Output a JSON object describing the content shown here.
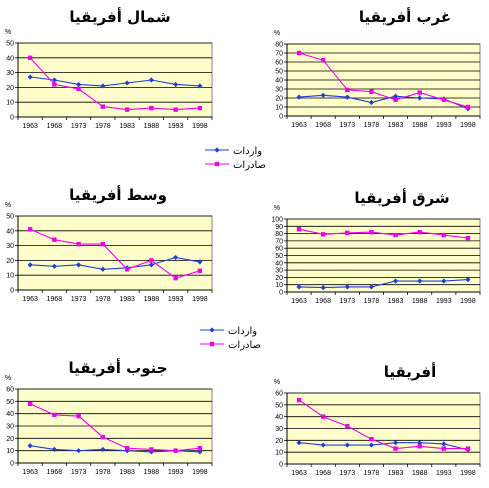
{
  "unit_symbol": "%",
  "colors": {
    "imports": "#1f3fd8",
    "exports": "#ee00ee",
    "plot_bg": "#ffffcc",
    "grid": "#000000"
  },
  "legends": [
    {
      "imports": "واردات",
      "exports": "صادرات"
    },
    {
      "imports": "واردات",
      "exports": "صادرات"
    }
  ],
  "chart_data": [
    {
      "type": "line",
      "title": "شمال أفريقيا",
      "categories": [
        "1963",
        "1968",
        "1973",
        "1978",
        "1983",
        "1988",
        "1993",
        "1998"
      ],
      "ylim": [
        0,
        50
      ],
      "yticks": [
        0,
        10,
        20,
        30,
        40,
        50
      ],
      "grid": true,
      "y_unit": "%",
      "series": [
        {
          "name": "واردات",
          "values": [
            27,
            25,
            22,
            21,
            23,
            25,
            22,
            21
          ]
        },
        {
          "name": "صادرات",
          "values": [
            40,
            22,
            19,
            7,
            5,
            6,
            5,
            6
          ]
        }
      ]
    },
    {
      "type": "line",
      "title": "غرب أفريقيا",
      "categories": [
        "1963",
        "1968",
        "1973",
        "1978",
        "1983",
        "1988",
        "1993",
        "1998"
      ],
      "ylim": [
        0,
        80
      ],
      "yticks": [
        0,
        10,
        20,
        30,
        40,
        50,
        60,
        70,
        80
      ],
      "grid": true,
      "y_unit": "%",
      "series": [
        {
          "name": "واردات",
          "values": [
            21,
            23,
            21,
            15,
            22,
            20,
            19,
            8
          ]
        },
        {
          "name": "صادرات",
          "values": [
            70,
            62,
            29,
            27,
            18,
            26,
            18,
            10
          ]
        }
      ]
    },
    {
      "type": "line",
      "title": "وسط أفريقيا",
      "categories": [
        "1963",
        "1968",
        "1973",
        "1978",
        "1983",
        "1988",
        "1993",
        "1998"
      ],
      "ylim": [
        0,
        50
      ],
      "yticks": [
        0,
        10,
        20,
        30,
        40,
        50
      ],
      "grid": true,
      "y_unit": "%",
      "series": [
        {
          "name": "واردات",
          "values": [
            17,
            16,
            17,
            14,
            15,
            17,
            22,
            19
          ]
        },
        {
          "name": "صادرات",
          "values": [
            41,
            34,
            31,
            31,
            14,
            20,
            8,
            13
          ]
        }
      ]
    },
    {
      "type": "line",
      "title": "شرق أفريقيا",
      "categories": [
        "1963",
        "1968",
        "1973",
        "1978",
        "1983",
        "1988",
        "1993",
        "1998"
      ],
      "ylim": [
        0,
        100
      ],
      "yticks": [
        0,
        10,
        20,
        30,
        40,
        50,
        60,
        70,
        80,
        90,
        100
      ],
      "grid": true,
      "y_unit": "%",
      "series": [
        {
          "name": "واردات",
          "values": [
            7,
            6,
            7,
            7,
            15,
            15,
            15,
            17
          ]
        },
        {
          "name": "صادرات",
          "values": [
            86,
            79,
            81,
            82,
            78,
            82,
            78,
            74
          ]
        }
      ]
    },
    {
      "type": "line",
      "title": "جنوب أفريقيا",
      "categories": [
        "1963",
        "1968",
        "1973",
        "1978",
        "1983",
        "1988",
        "1993",
        "1998"
      ],
      "ylim": [
        0,
        60
      ],
      "yticks": [
        0,
        10,
        20,
        30,
        40,
        50,
        60
      ],
      "grid": true,
      "y_unit": "%",
      "series": [
        {
          "name": "واردات",
          "values": [
            14,
            11,
            10,
            11,
            10,
            9,
            10,
            9
          ]
        },
        {
          "name": "صادرات",
          "values": [
            48,
            39,
            38,
            21,
            12,
            11,
            10,
            12
          ]
        }
      ]
    },
    {
      "type": "line",
      "title": "أفريقيا",
      "categories": [
        "1963",
        "1968",
        "1973",
        "1978",
        "1983",
        "1988",
        "1993",
        "1998"
      ],
      "ylim": [
        0,
        60
      ],
      "yticks": [
        0,
        10,
        20,
        30,
        40,
        50,
        60
      ],
      "grid": true,
      "y_unit": "%",
      "series": [
        {
          "name": "واردات",
          "values": [
            18,
            16,
            16,
            16,
            18,
            18,
            17,
            12
          ]
        },
        {
          "name": "صادرات",
          "values": [
            54,
            40,
            32,
            21,
            13,
            15,
            13,
            13
          ]
        }
      ]
    }
  ]
}
